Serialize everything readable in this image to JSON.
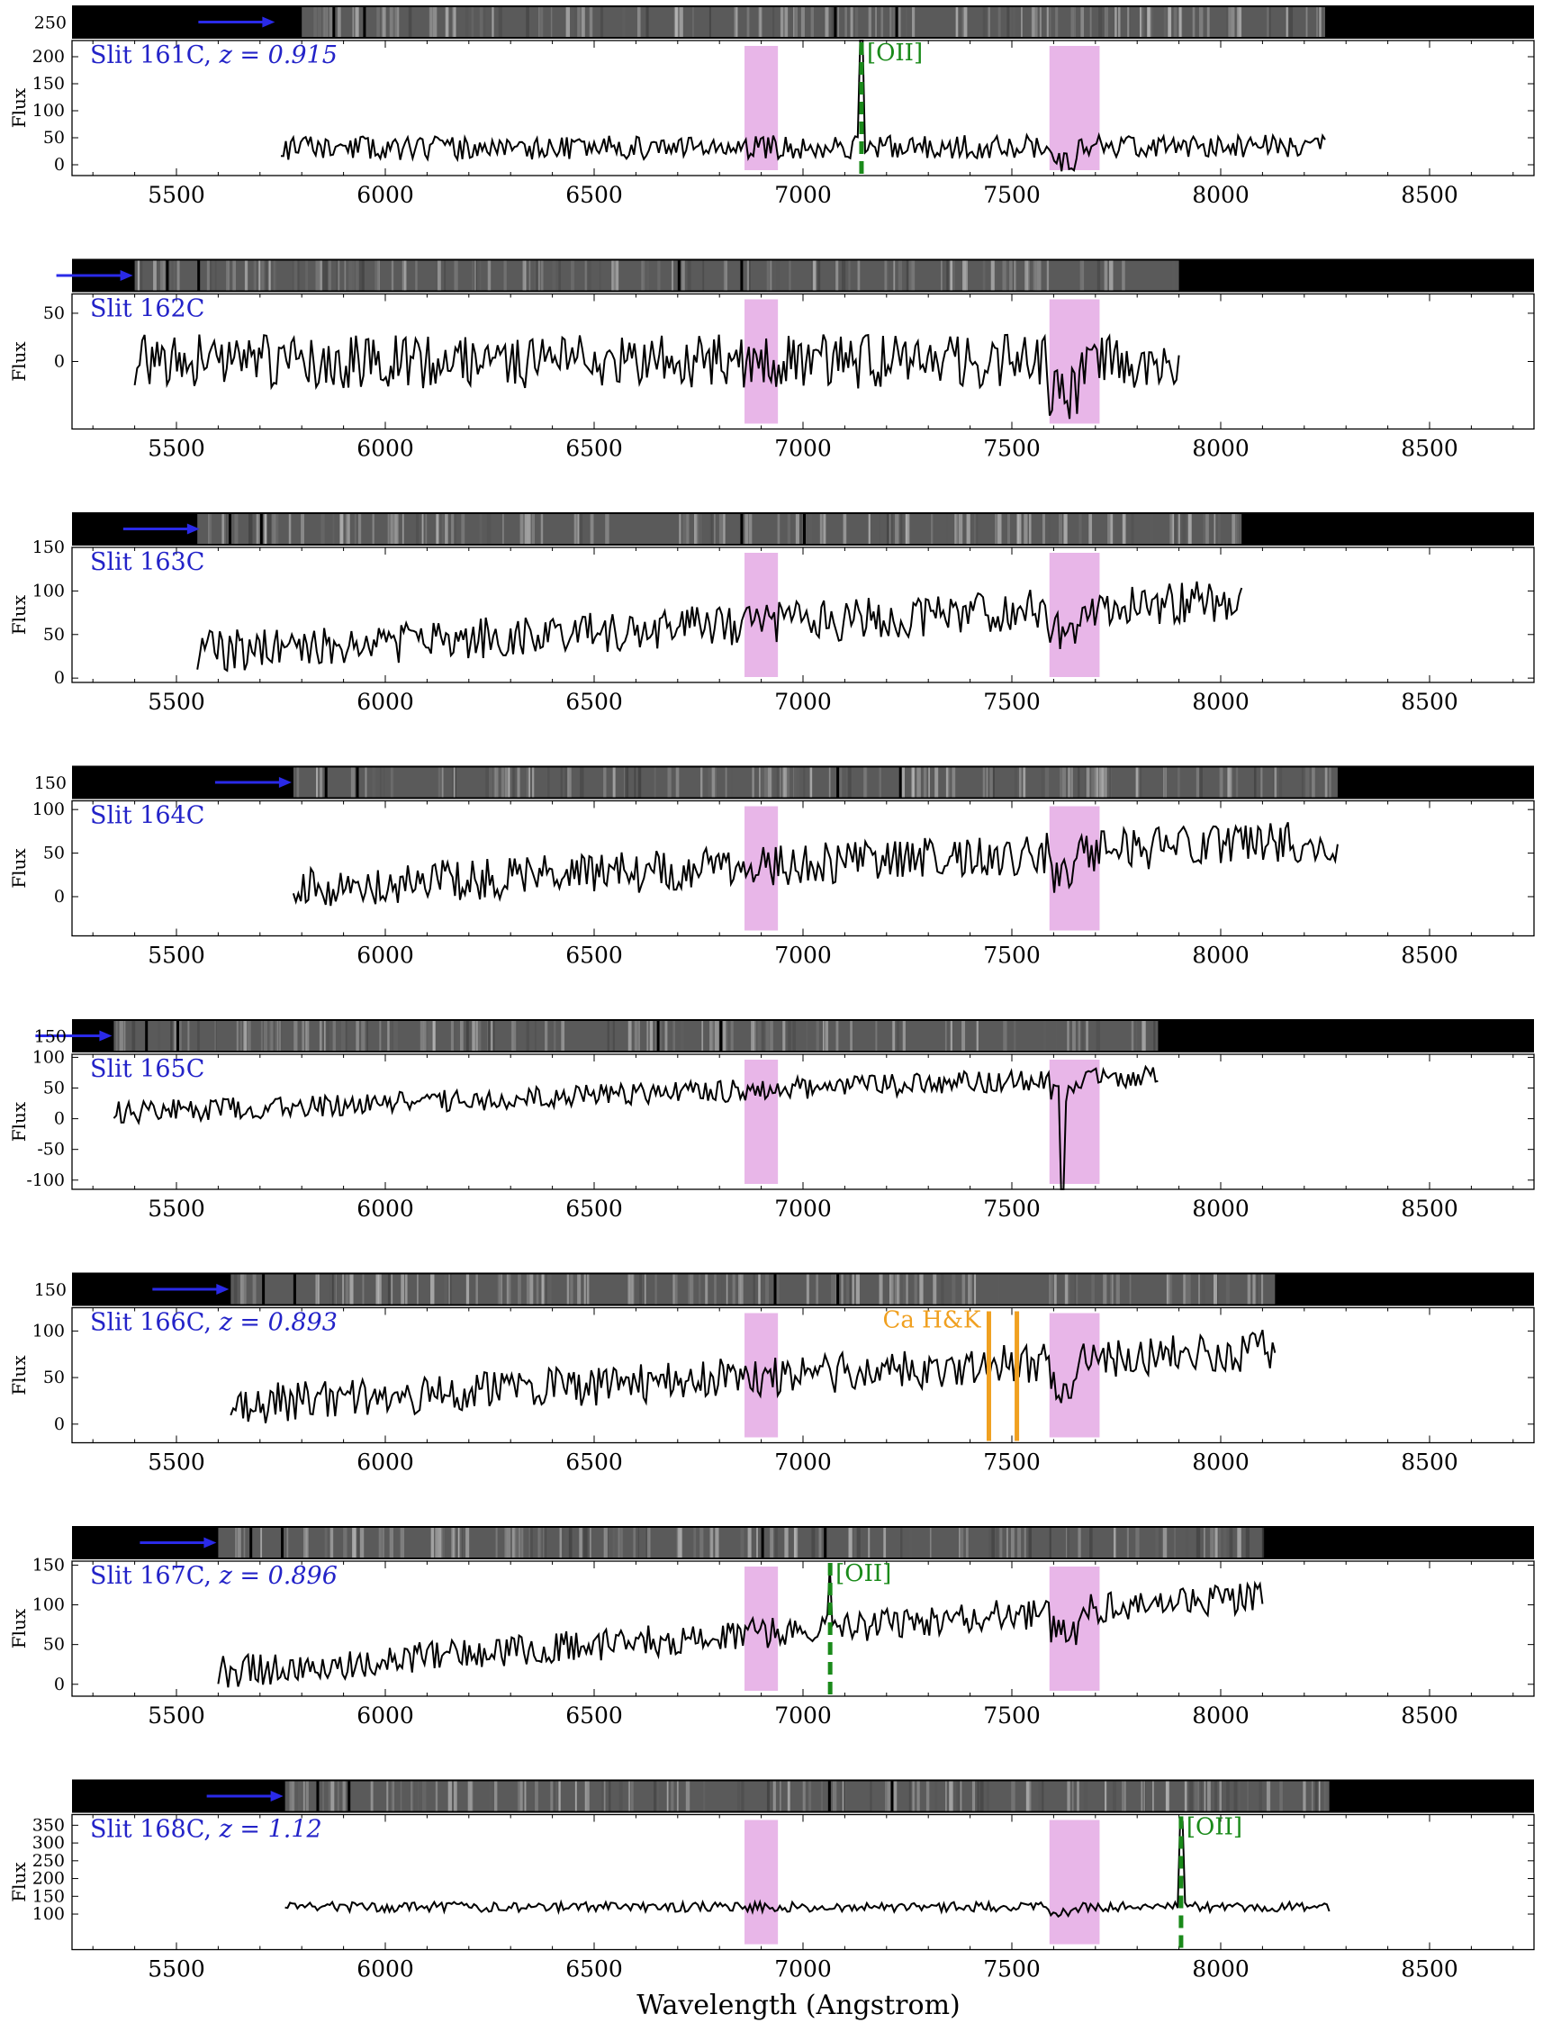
{
  "figure": {
    "xlabel": "Wavelength (Angstrom)"
  },
  "chart_data": {
    "type": "line",
    "xlabel": "Wavelength (Angstrom)",
    "ylabel": "Flux",
    "xlim": [
      5250,
      8750
    ],
    "x_ticks": [
      5500,
      6000,
      6500,
      7000,
      7500,
      8000,
      8500
    ],
    "telluric_bands_angstrom": [
      [
        6860,
        6940
      ],
      [
        7590,
        7710
      ]
    ],
    "colors": {
      "spectrum": "#000000",
      "telluric_band": "#e8b6e8",
      "label": "#2323c8",
      "arrow": "#2a2ae8",
      "oii_line": "#1a8a1a",
      "cahk_line": "#f0a020",
      "image_bg": "#000000"
    },
    "panels": [
      {
        "label": "Slit 161C, ",
        "redshift_label": "z = 0.915",
        "ylabel": "Flux",
        "ylim": [
          -20,
          230
        ],
        "y_ticks": [
          0,
          50,
          100,
          150,
          200
        ],
        "image_ticks": [
          250
        ],
        "image_range": [
          5800,
          8250
        ],
        "arrow_end": 5740,
        "xrange": [
          5750,
          8250
        ],
        "spikes": [
          [
            7140,
            230
          ]
        ],
        "lines": [
          {
            "kind": "OII",
            "text": "[OII]",
            "x": 7140,
            "style": "dashed"
          }
        ],
        "seed": 11,
        "base": 30,
        "slope": 5,
        "amp": 22
      },
      {
        "label": "Slit 162C",
        "redshift_label": "",
        "ylabel": "Flux",
        "ylim": [
          -70,
          70
        ],
        "y_ticks": [
          0,
          50
        ],
        "image_ticks": [],
        "image_range": [
          5400,
          7900
        ],
        "arrow_end": 5400,
        "xrange": [
          5400,
          7900
        ],
        "spikes": [],
        "lines": [],
        "seed": 23,
        "base": 0,
        "slope": 0,
        "amp": 28
      },
      {
        "label": "Slit 163C",
        "redshift_label": "",
        "ylabel": "Flux",
        "ylim": [
          -5,
          150
        ],
        "y_ticks": [
          0,
          50,
          100,
          150
        ],
        "image_ticks": [],
        "image_range": [
          5550,
          8050
        ],
        "arrow_end": 5560,
        "xrange": [
          5550,
          8050
        ],
        "spikes": [],
        "lines": [],
        "seed": 37,
        "base": 30,
        "slope": 60,
        "amp": 24
      },
      {
        "label": "Slit 164C",
        "redshift_label": "",
        "ylabel": "Flux",
        "ylim": [
          -45,
          110
        ],
        "y_ticks": [
          0,
          50,
          100
        ],
        "image_ticks": [
          150
        ],
        "image_range": [
          5780,
          8280
        ],
        "arrow_end": 5780,
        "xrange": [
          5780,
          8280
        ],
        "spikes": [],
        "lines": [],
        "seed": 41,
        "base": 10,
        "slope": 55,
        "amp": 24
      },
      {
        "label": "Slit 165C",
        "redshift_label": "",
        "ylabel": "Flux",
        "ylim": [
          -115,
          105
        ],
        "y_ticks": [
          100,
          50,
          0,
          -50,
          -100
        ],
        "image_ticks": [
          150
        ],
        "image_range": [
          5350,
          7850
        ],
        "arrow_end": 5350,
        "xrange": [
          5350,
          7850
        ],
        "spikes": [
          [
            7620,
            -115
          ]
        ],
        "lines": [],
        "seed": 53,
        "base": 10,
        "slope": 60,
        "amp": 18
      },
      {
        "label": "Slit 166C, ",
        "redshift_label": "z = 0.893",
        "ylabel": "Flux",
        "ylim": [
          -20,
          125
        ],
        "y_ticks": [
          0,
          50,
          100
        ],
        "image_ticks": [
          150
        ],
        "image_range": [
          5630,
          8130
        ],
        "arrow_end": 5630,
        "xrange": [
          5630,
          8130
        ],
        "spikes": [],
        "lines": [
          {
            "kind": "CaHK",
            "text": "Ca H&K",
            "x": 7445,
            "x2": 7512,
            "style": "solid"
          }
        ],
        "seed": 67,
        "base": 20,
        "slope": 60,
        "amp": 22
      },
      {
        "label": "Slit 167C, ",
        "redshift_label": "z = 0.896",
        "ylabel": "Flux",
        "ylim": [
          -15,
          155
        ],
        "y_ticks": [
          0,
          50,
          100,
          150
        ],
        "image_ticks": [],
        "image_range": [
          5600,
          8100
        ],
        "arrow_end": 5600,
        "xrange": [
          5600,
          8100
        ],
        "spikes": [
          [
            7065,
            148
          ]
        ],
        "lines": [
          {
            "kind": "OII",
            "text": "[OII]",
            "x": 7065,
            "style": "dashed"
          }
        ],
        "seed": 79,
        "base": 15,
        "slope": 95,
        "amp": 20
      },
      {
        "label": "Slit 168C, ",
        "redshift_label": "z = 1.12",
        "ylabel": "Flux",
        "ylim": [
          0,
          380
        ],
        "y_ticks": [
          100,
          150,
          200,
          250,
          300,
          350
        ],
        "image_ticks": [],
        "image_range": [
          5760,
          8260
        ],
        "arrow_end": 5760,
        "xrange": [
          5760,
          8260
        ],
        "spikes": [
          [
            7905,
            360
          ]
        ],
        "lines": [
          {
            "kind": "OII",
            "text": "[OII]",
            "x": 7905,
            "style": "dashed"
          }
        ],
        "seed": 97,
        "base": 120,
        "slope": 0,
        "amp": 14
      }
    ]
  }
}
